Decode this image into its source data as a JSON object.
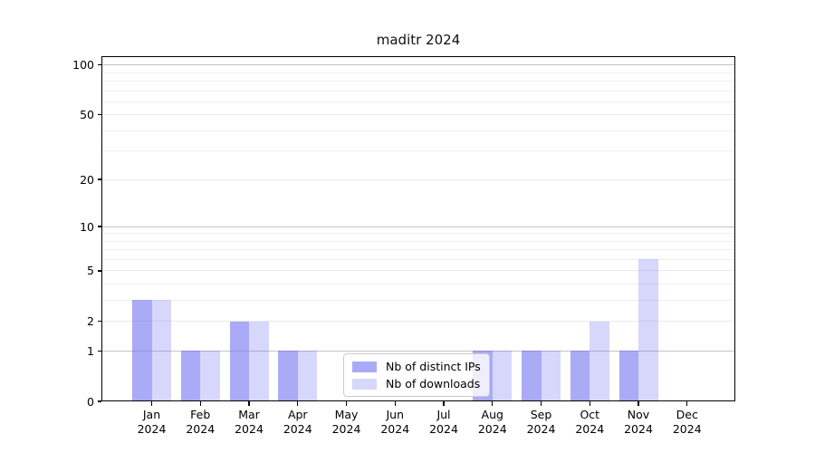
{
  "chart_data": {
    "type": "bar",
    "title": "maditr 2024",
    "categories": [
      "Jan",
      "Feb",
      "Mar",
      "Apr",
      "May",
      "Jun",
      "Jul",
      "Aug",
      "Sep",
      "Oct",
      "Nov",
      "Dec"
    ],
    "category_year": "2024",
    "series": [
      {
        "name": "Nb of distinct IPs",
        "fill": "rgba(108,108,241,0.58)",
        "values": [
          3,
          1,
          2,
          1,
          0,
          0,
          0,
          1,
          1,
          1,
          1,
          0
        ]
      },
      {
        "name": "Nb of downloads",
        "fill": "rgba(108,108,241,0.27)",
        "values": [
          3,
          1,
          2,
          1,
          0,
          0,
          0,
          1,
          1,
          2,
          6,
          0
        ]
      }
    ],
    "yscale": "log1p",
    "ylim": [
      0,
      113
    ],
    "yticks": [
      0,
      1,
      2,
      5,
      10,
      20,
      50,
      100
    ],
    "decade_ticks": [
      1,
      10,
      100
    ],
    "minor_gridlines": [
      3,
      4,
      6,
      7,
      8,
      9,
      30,
      40,
      60,
      70,
      80,
      90
    ],
    "grid": true,
    "legend_position": "lower center",
    "xlabel": "",
    "ylabel": ""
  },
  "colors": {
    "bar_base": "#6c6cf1",
    "bar_dark_rendered": "#a9a9f7",
    "bar_light_rendered": "#d7d7fb",
    "grid_major": "#c4c4c4",
    "grid_minor": "#efefef",
    "axis_spine": "#000000",
    "legend_border": "#cccccc",
    "background": "#ffffff"
  }
}
